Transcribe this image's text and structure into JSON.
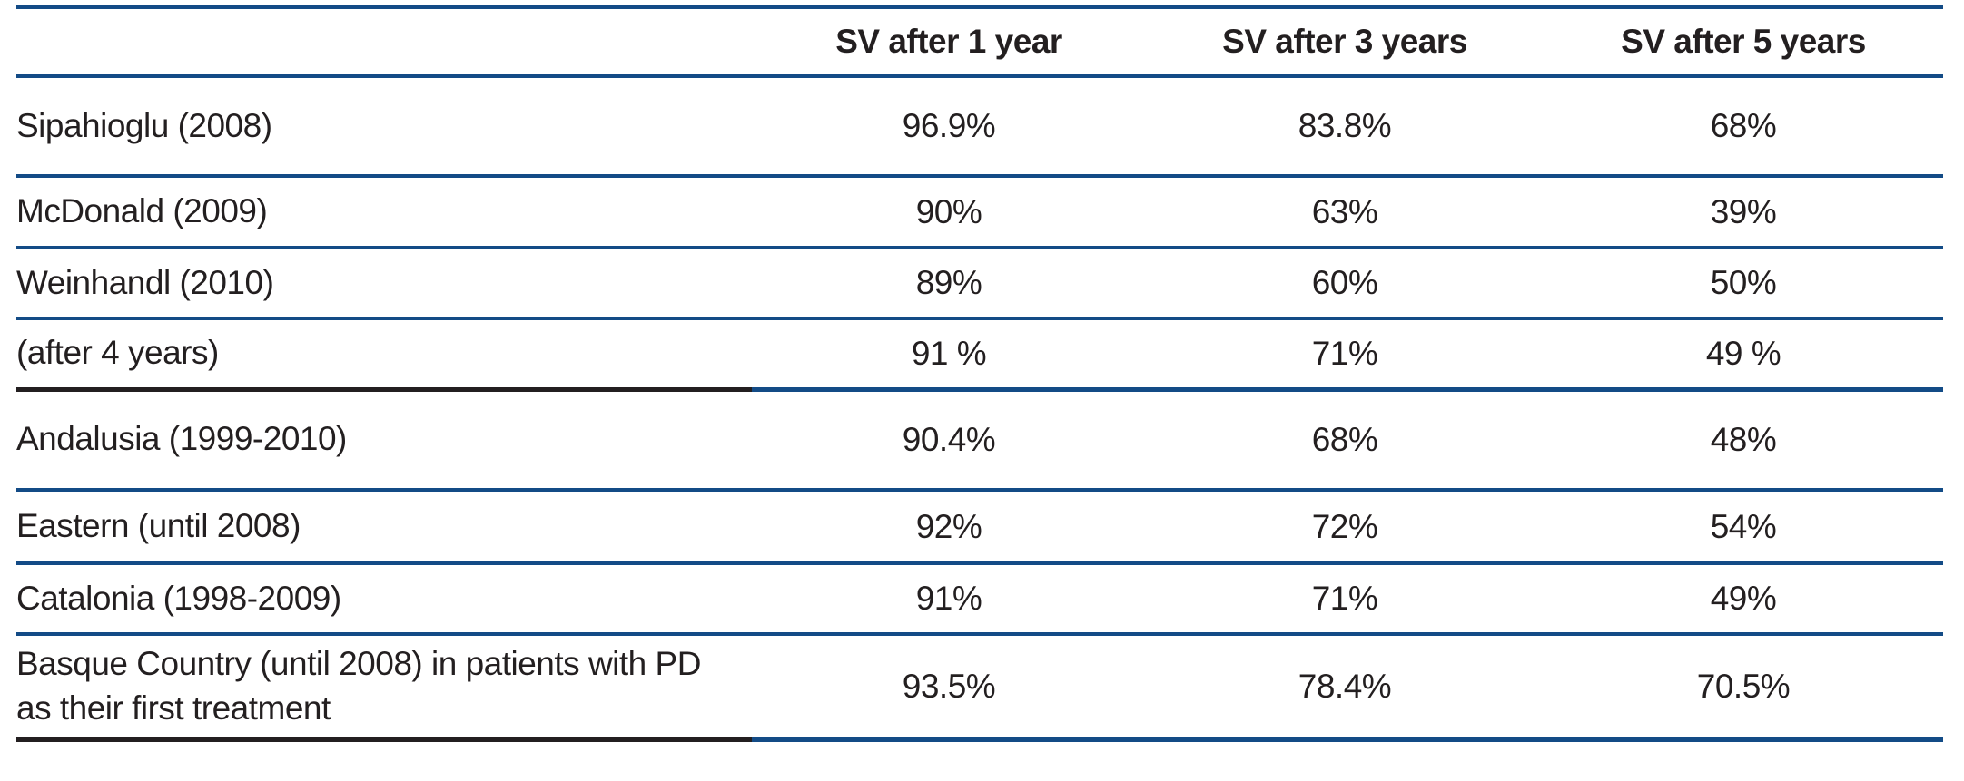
{
  "colors": {
    "rule_blue": "#134b86",
    "rule_black": "#231f20",
    "text": "#231f20"
  },
  "table": {
    "column_headers": [
      "SV after 1 year",
      "SV after 3 years",
      "SV after 5 years"
    ],
    "rows": [
      {
        "label": "Sipahioglu (2008)",
        "values": [
          "96.9%",
          "83.8%",
          "68%"
        ],
        "label_rule": "blue"
      },
      {
        "label": "McDonald (2009)",
        "values": [
          "90%",
          "63%",
          "39%"
        ],
        "label_rule": "blue"
      },
      {
        "label": "Weinhandl (2010)",
        "values": [
          "89%",
          "60%",
          "50%"
        ],
        "label_rule": "blue"
      },
      {
        "label": "(after 4 years)",
        "values": [
          "91 %",
          "71%",
          "49 %"
        ],
        "label_rule": "black"
      },
      {
        "label": "Andalusia (1999-2010)",
        "values": [
          "90.4%",
          "68%",
          "48%"
        ],
        "label_rule": "blue"
      },
      {
        "label": "Eastern (until 2008)",
        "values": [
          "92%",
          "72%",
          "54%"
        ],
        "label_rule": "blue"
      },
      {
        "label": "Catalonia (1998-2009)",
        "values": [
          "91%",
          "71%",
          "49%"
        ],
        "label_rule": "blue"
      },
      {
        "label": "Basque Country (until 2008) in patients with PD\nas their first treatment",
        "values": [
          "93.5%",
          "78.4%",
          "70.5%"
        ],
        "label_rule": "black"
      }
    ]
  },
  "chart_data": {
    "type": "table",
    "title": "",
    "columns": [
      "",
      "SV after 1 year",
      "SV after 3 years",
      "SV after 5 years"
    ],
    "rows": [
      [
        "Sipahioglu (2008)",
        "96.9%",
        "83.8%",
        "68%"
      ],
      [
        "McDonald (2009)",
        "90%",
        "63%",
        "39%"
      ],
      [
        "Weinhandl (2010)",
        "89%",
        "60%",
        "50%"
      ],
      [
        "(after 4 years)",
        "91 %",
        "71%",
        "49 %"
      ],
      [
        "Andalusia (1999-2010)",
        "90.4%",
        "68%",
        "48%"
      ],
      [
        "Eastern (until 2008)",
        "92%",
        "72%",
        "54%"
      ],
      [
        "Catalonia (1998-2009)",
        "91%",
        "71%",
        "49%"
      ],
      [
        "Basque Country (until 2008) in patients with PD as their first treatment",
        "93.5%",
        "78.4%",
        "70.5%"
      ]
    ]
  }
}
